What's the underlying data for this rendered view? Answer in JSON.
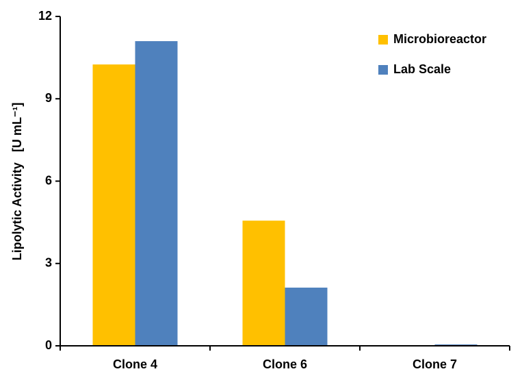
{
  "chart_data": {
    "type": "bar",
    "y_label": "Lipolytic Activity   [U mL⁻¹]",
    "categories": [
      "Clone 4",
      "Clone 6",
      "Clone 7"
    ],
    "series": [
      {
        "name": "Microbioreactor",
        "color": "#ffc000",
        "values": [
          10.25,
          4.56,
          0
        ]
      },
      {
        "name": "Lab Scale",
        "color": "#4f81bd",
        "values": [
          11.1,
          2.12,
          0.05
        ]
      }
    ],
    "ylim": [
      0,
      12
    ],
    "yticks": [
      0,
      3,
      6,
      9,
      12
    ],
    "grid": false,
    "legend": "upper right"
  }
}
